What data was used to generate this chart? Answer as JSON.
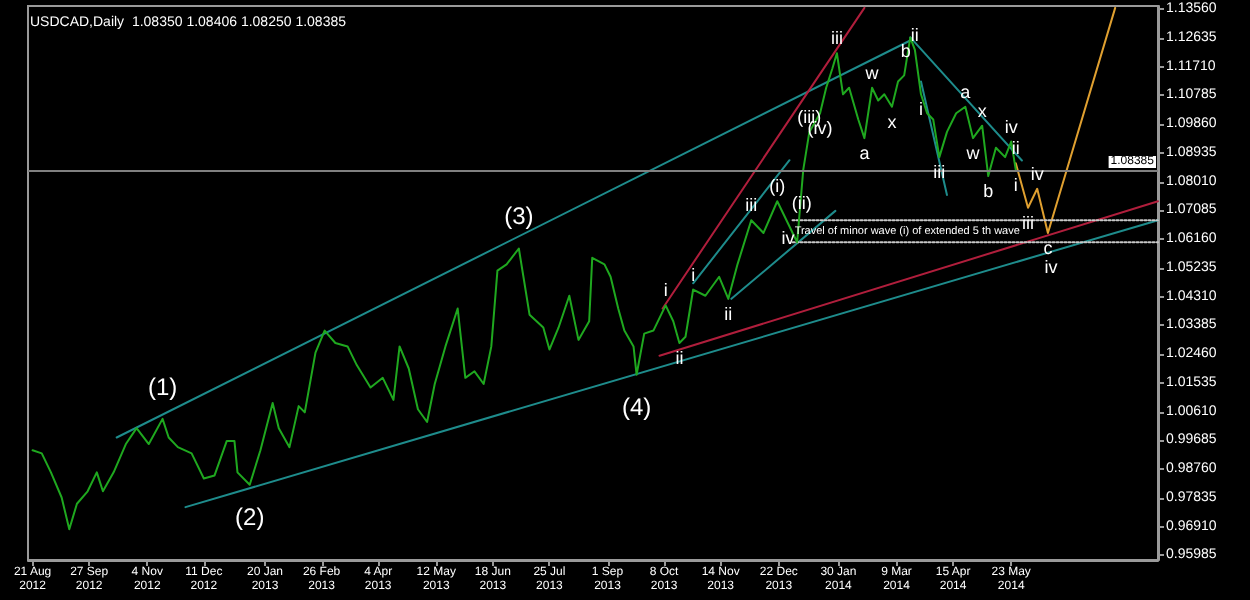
{
  "chart_data": {
    "type": "line",
    "title": "USDCAD,Daily  1.08350 1.08406 1.08250 1.08385",
    "marker": "none",
    "xlim": [
      "2012-08-18",
      "2014-08-27"
    ],
    "ylim": [
      0.9584,
      1.1366
    ],
    "xticks": [
      {
        "value": "2012-08-21",
        "label": "21 Aug 2012"
      },
      {
        "value": "2012-09-27",
        "label": "27 Sep 2012"
      },
      {
        "value": "2012-11-04",
        "label": "4 Nov 2012"
      },
      {
        "value": "2012-12-11",
        "label": "11 Dec 2012"
      },
      {
        "value": "2013-01-20",
        "label": "20 Jan 2013"
      },
      {
        "value": "2013-02-26",
        "label": "26 Feb 2013"
      },
      {
        "value": "2013-04-04",
        "label": "4 Apr 2013"
      },
      {
        "value": "2013-05-12",
        "label": "12 May 2013"
      },
      {
        "value": "2013-06-18",
        "label": "18 Jun 2013"
      },
      {
        "value": "2013-07-25",
        "label": "25 Jul 2013"
      },
      {
        "value": "2013-09-01",
        "label": "1 Sep 2013"
      },
      {
        "value": "2013-10-08",
        "label": "8 Oct 2013"
      },
      {
        "value": "2013-11-14",
        "label": "14 Nov 2013"
      },
      {
        "value": "2013-12-22",
        "label": "22 Dec 2013"
      },
      {
        "value": "2014-01-30",
        "label": "30 Jan 2014"
      },
      {
        "value": "2014-03-09",
        "label": "9 Mar 2014"
      },
      {
        "value": "2014-04-15",
        "label": "15 Apr 2014"
      },
      {
        "value": "2014-05-23",
        "label": "23 May 2014"
      }
    ],
    "yticks": [
      {
        "value": 1.1356,
        "label": "1.13560"
      },
      {
        "value": 1.12635,
        "label": "1.12635"
      },
      {
        "value": 1.1171,
        "label": "1.11710"
      },
      {
        "value": 1.10785,
        "label": "1.10785"
      },
      {
        "value": 1.0986,
        "label": "1.09860"
      },
      {
        "value": 1.08935,
        "label": "1.08935"
      },
      {
        "value": 1.0801,
        "label": "1.08010"
      },
      {
        "value": 1.07085,
        "label": "1.07085"
      },
      {
        "value": 1.0616,
        "label": "1.06160"
      },
      {
        "value": 1.05235,
        "label": "1.05235"
      },
      {
        "value": 1.0431,
        "label": "1.04310"
      },
      {
        "value": 1.03385,
        "label": "1.03385"
      },
      {
        "value": 1.0246,
        "label": "1.02460"
      },
      {
        "value": 1.01535,
        "label": "1.01535"
      },
      {
        "value": 1.0061,
        "label": "1.00610"
      },
      {
        "value": 0.99685,
        "label": "0.99685"
      },
      {
        "value": 0.9876,
        "label": "0.98760"
      },
      {
        "value": 0.97835,
        "label": "0.97835"
      },
      {
        "value": 0.9691,
        "label": "0.96910"
      },
      {
        "value": 0.95985,
        "label": "0.95985"
      }
    ],
    "series": [
      {
        "color": "#1fa81f",
        "x": [
          "2012-08-21",
          "2012-08-27",
          "2012-09-02",
          "2012-09-09",
          "2012-09-14",
          "2012-09-19",
          "2012-09-26",
          "2012-10-02",
          "2012-10-06",
          "2012-10-13",
          "2012-10-21",
          "2012-10-28",
          "2012-11-05",
          "2012-11-14",
          "2012-11-18",
          "2012-11-24",
          "2012-12-03",
          "2012-12-11",
          "2012-12-18",
          "2012-12-26",
          "2012-12-31",
          "2013-01-02",
          "2013-01-10",
          "2013-01-17",
          "2013-01-25",
          "2013-01-29",
          "2013-02-05",
          "2013-02-11",
          "2013-02-15",
          "2013-02-22",
          "2013-02-28",
          "2013-03-07",
          "2013-03-15",
          "2013-03-21",
          "2013-03-30",
          "2013-04-07",
          "2013-04-14",
          "2013-04-18",
          "2013-04-24",
          "2013-04-30",
          "2013-05-06",
          "2013-05-11",
          "2013-05-18",
          "2013-05-26",
          "2013-05-31",
          "2013-06-06",
          "2013-06-12",
          "2013-06-17",
          "2013-06-21",
          "2013-06-27",
          "2013-07-05",
          "2013-07-08",
          "2013-07-12",
          "2013-07-21",
          "2013-07-25",
          "2013-07-31",
          "2013-08-07",
          "2013-08-13",
          "2013-08-20",
          "2013-08-22",
          "2013-08-30",
          "2013-09-03",
          "2013-09-08",
          "2013-09-12",
          "2013-09-18",
          "2013-09-20",
          "2013-09-25",
          "2013-10-01",
          "2013-10-09",
          "2013-10-14",
          "2013-10-18",
          "2013-10-22",
          "2013-10-27",
          "2013-11-04",
          "2013-11-13",
          "2013-11-19",
          "2013-11-25",
          "2013-12-04",
          "2013-12-12",
          "2013-12-21",
          "2014-01-03",
          "2014-01-07",
          "2014-01-11",
          "2014-01-18",
          "2014-01-22",
          "2014-01-26",
          "2014-01-29",
          "2014-02-02",
          "2014-02-06",
          "2014-02-12",
          "2014-02-16",
          "2014-02-21",
          "2014-02-25",
          "2014-03-01",
          "2014-03-06",
          "2014-03-10",
          "2014-03-14",
          "2014-03-18",
          "2014-03-21",
          "2014-03-25",
          "2014-03-29",
          "2014-04-02",
          "2014-04-06",
          "2014-04-11",
          "2014-04-17",
          "2014-04-23",
          "2014-04-28",
          "2014-05-04",
          "2014-05-08",
          "2014-05-13",
          "2014-05-19",
          "2014-05-23",
          "2014-05-26"
        ],
        "values": [
          0.9937,
          0.9927,
          0.9866,
          0.9785,
          0.9683,
          0.9765,
          0.9805,
          0.9866,
          0.9805,
          0.9866,
          0.9957,
          1.0008,
          0.9957,
          1.0038,
          0.9978,
          0.9947,
          0.9927,
          0.9846,
          0.9856,
          0.9967,
          0.9967,
          0.9866,
          0.9826,
          0.9937,
          1.0089,
          1.0008,
          0.9947,
          1.0079,
          1.0059,
          1.0251,
          1.0322,
          1.0282,
          1.0271,
          1.0211,
          1.0139,
          1.017,
          1.0099,
          1.0271,
          1.02,
          1.0069,
          1.0028,
          1.015,
          1.0271,
          1.0393,
          1.017,
          1.0191,
          1.015,
          1.0271,
          1.0515,
          1.0535,
          1.0586,
          1.0495,
          1.0373,
          1.0332,
          1.0261,
          1.0332,
          1.0434,
          1.0292,
          1.0352,
          1.0556,
          1.0535,
          1.0495,
          1.0393,
          1.0322,
          1.0271,
          1.018,
          1.0312,
          1.0322,
          1.0403,
          1.0352,
          1.0282,
          1.0302,
          1.0454,
          1.0434,
          1.0495,
          1.0424,
          1.0535,
          1.0677,
          1.0636,
          1.0738,
          1.0606,
          1.0839,
          1.0961,
          1.1021,
          1.1103,
          1.1164,
          1.1214,
          1.1082,
          1.1103,
          1.1001,
          1.0941,
          1.1103,
          1.1062,
          1.1082,
          1.1042,
          1.1123,
          1.1143,
          1.1265,
          1.1225,
          1.1082,
          1.1021,
          1.1001,
          1.088,
          1.0961,
          1.1021,
          1.1042,
          1.0941,
          1.0981,
          1.0819,
          1.091,
          1.088,
          1.093,
          1.0839
        ]
      },
      {
        "color": "#1e8c8c",
        "x": [
          "2012-10-15",
          "2014-03-18"
        ],
        "values": [
          0.9978,
          1.1255
        ]
      },
      {
        "color": "#1e8c8c",
        "x": [
          "2012-11-29",
          "2014-08-27"
        ],
        "values": [
          0.9754,
          1.0677
        ]
      },
      {
        "color": "#b01e3c",
        "x": [
          "2013-10-05",
          "2014-08-27"
        ],
        "values": [
          1.0241,
          1.0738
        ]
      },
      {
        "color": "#b01e3c",
        "x": [
          "2013-10-07",
          "2014-02-16"
        ],
        "values": [
          1.0393,
          1.136
        ]
      },
      {
        "color": "#1e8c8c",
        "x": [
          "2013-10-27",
          "2013-12-29"
        ],
        "values": [
          1.0474,
          1.087
        ]
      },
      {
        "color": "#1e8c8c",
        "x": [
          "2013-11-21",
          "2014-01-28"
        ],
        "values": [
          1.0424,
          1.0707
        ]
      },
      {
        "color": "#1e8c8c",
        "x": [
          "2014-03-18",
          "2014-05-30"
        ],
        "values": [
          1.1265,
          1.0869
        ]
      },
      {
        "color": "#1e8c8c",
        "x": [
          "2014-03-25",
          "2014-04-11"
        ],
        "values": [
          1.1123,
          1.0758
        ]
      },
      {
        "color": "#e0a030",
        "x": [
          "2014-05-26",
          "2014-06-03",
          "2014-06-09",
          "2014-06-16",
          "2014-07-30"
        ],
        "values": [
          1.086,
          1.0717,
          1.0778,
          1.0636,
          1.136
        ]
      },
      {
        "color": "#c8c8c8",
        "line_style": "dotted",
        "x": [
          "2013-12-31",
          "2014-08-27"
        ],
        "values": [
          1.0677,
          1.0677
        ]
      },
      {
        "color": "#c8c8c8",
        "line_style": "dotted",
        "x": [
          "2013-12-31",
          "2014-08-27"
        ],
        "values": [
          1.0606,
          1.0606
        ]
      }
    ],
    "ref_lines": [
      {
        "axis": "y",
        "value": 1.08385,
        "label": "1.08385",
        "color": "#808080"
      }
    ],
    "annotations": [
      {
        "text": "(1)",
        "x": "2012-11-14",
        "y": 1.0038
      },
      {
        "text": "(2)",
        "x": "2013-01-10",
        "y": 0.9826
      },
      {
        "text": "(3)",
        "x": "2013-07-05",
        "y": 1.0586
      },
      {
        "text": "(4)",
        "x": "2013-09-20",
        "y": 1.018
      },
      {
        "text": "i",
        "x": "2013-10-09",
        "y": 1.0403
      },
      {
        "text": "ii",
        "x": "2013-10-18",
        "y": 1.0282
      },
      {
        "text": "i",
        "x": "2013-10-27",
        "y": 1.0454
      },
      {
        "text": "ii",
        "x": "2013-11-19",
        "y": 1.0424
      },
      {
        "text": "iii",
        "x": "2013-12-04",
        "y": 1.0677
      },
      {
        "text": "iv",
        "x": "2013-12-28",
        "y": 1.0667
      },
      {
        "text": "(i)",
        "x": "2013-12-21",
        "y": 1.0738
      },
      {
        "text": "(ii)",
        "x": "2014-01-06",
        "y": 1.0781
      },
      {
        "text": "(iii)",
        "x": "2014-01-11",
        "y": 1.0961
      },
      {
        "text": "(iv)",
        "x": "2014-01-18",
        "y": 1.1021
      },
      {
        "text": "iii",
        "x": "2014-01-29",
        "y": 1.1214
      },
      {
        "text": "w",
        "x": "2014-02-21",
        "y": 1.1103
      },
      {
        "text": "a",
        "x": "2014-02-16",
        "y": 1.0941
      },
      {
        "text": "x",
        "x": "2014-03-06",
        "y": 1.1042
      },
      {
        "text": "b",
        "x": "2014-03-15",
        "y": 1.1174
      },
      {
        "text": "ii",
        "x": "2014-03-21",
        "y": 1.1225
      },
      {
        "text": "i",
        "x": "2014-03-25",
        "y": 1.1082
      },
      {
        "text": "iii",
        "x": "2014-04-06",
        "y": 1.088
      },
      {
        "text": "a",
        "x": "2014-04-23",
        "y": 1.1042
      },
      {
        "text": "x",
        "x": "2014-05-04",
        "y": 1.0981
      },
      {
        "text": "w",
        "x": "2014-04-28",
        "y": 1.0941
      },
      {
        "text": "iv",
        "x": "2014-05-23",
        "y": 1.093
      },
      {
        "text": "b",
        "x": "2014-05-08",
        "y": 1.0819
      },
      {
        "text": "i",
        "x": "2014-05-26",
        "y": 1.0839
      },
      {
        "text": "ii",
        "x": "2014-05-26",
        "y": 1.086
      },
      {
        "text": "iv",
        "x": "2014-06-09",
        "y": 1.0778
      },
      {
        "text": "iii",
        "x": "2014-06-03",
        "y": 1.0717
      },
      {
        "text": "c",
        "x": "2014-06-16",
        "y": 1.0636
      },
      {
        "text": "iv",
        "x": "2014-06-18",
        "y": 1.0575
      },
      {
        "text": "Travel of minor wave (i) of extended 5 th wave",
        "x": "2014-03-16",
        "y": 1.0677
      }
    ]
  }
}
